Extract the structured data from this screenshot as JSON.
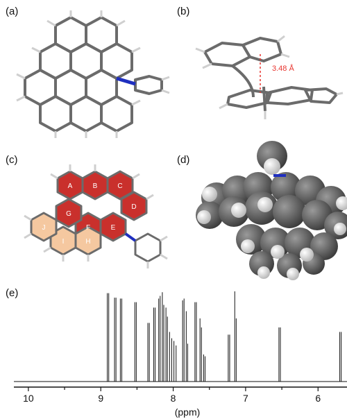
{
  "panels": {
    "a": {
      "label": "(a)"
    },
    "b": {
      "label": "(b)",
      "distance_label": "3.48 Å"
    },
    "c": {
      "label": "(c)",
      "rings": [
        "A",
        "B",
        "C",
        "D",
        "E",
        "F",
        "G",
        "H",
        "I",
        "J"
      ]
    },
    "d": {
      "label": "(d)"
    },
    "e": {
      "label": "(e)"
    }
  },
  "colors": {
    "bond_gray": "#6b6b6b",
    "hydrogen": "#d9d9d9",
    "nitrogen": "#1f2fbf",
    "ring_red": "#c9302c",
    "ring_peach": "#f5c8a0",
    "distance_red": "#e8342e"
  },
  "chart_data": {
    "type": "line",
    "title": "",
    "xlabel": "(ppm)",
    "ylabel": "",
    "xlim": [
      10.2,
      5.6
    ],
    "xticks": [
      "10",
      "9",
      "8",
      "7",
      "6"
    ],
    "grid": false,
    "peaks": [
      {
        "x": 8.91,
        "h": 0.98
      },
      {
        "x": 8.89,
        "h": 0.98
      },
      {
        "x": 8.81,
        "h": 0.93
      },
      {
        "x": 8.79,
        "h": 0.93
      },
      {
        "x": 8.73,
        "h": 0.92
      },
      {
        "x": 8.71,
        "h": 0.92
      },
      {
        "x": 8.53,
        "h": 0.88
      },
      {
        "x": 8.51,
        "h": 0.88
      },
      {
        "x": 8.35,
        "h": 0.65
      },
      {
        "x": 8.33,
        "h": 0.65
      },
      {
        "x": 8.27,
        "h": 0.82
      },
      {
        "x": 8.25,
        "h": 0.82
      },
      {
        "x": 8.2,
        "h": 0.92
      },
      {
        "x": 8.18,
        "h": 0.95
      },
      {
        "x": 8.15,
        "h": 0.99
      },
      {
        "x": 8.13,
        "h": 0.85
      },
      {
        "x": 8.1,
        "h": 0.82
      },
      {
        "x": 8.08,
        "h": 0.72
      },
      {
        "x": 8.05,
        "h": 0.55
      },
      {
        "x": 8.02,
        "h": 0.48
      },
      {
        "x": 7.99,
        "h": 0.45
      },
      {
        "x": 7.96,
        "h": 0.4
      },
      {
        "x": 7.87,
        "h": 0.9
      },
      {
        "x": 7.85,
        "h": 0.92
      },
      {
        "x": 7.82,
        "h": 0.78
      },
      {
        "x": 7.8,
        "h": 0.42
      },
      {
        "x": 7.7,
        "h": 0.88
      },
      {
        "x": 7.68,
        "h": 0.88
      },
      {
        "x": 7.63,
        "h": 0.7
      },
      {
        "x": 7.61,
        "h": 0.6
      },
      {
        "x": 7.58,
        "h": 0.3
      },
      {
        "x": 7.56,
        "h": 0.28
      },
      {
        "x": 7.24,
        "h": 0.52
      },
      {
        "x": 7.22,
        "h": 0.52
      },
      {
        "x": 7.15,
        "h": 1.0
      },
      {
        "x": 7.13,
        "h": 0.7
      },
      {
        "x": 6.54,
        "h": 0.6
      },
      {
        "x": 6.52,
        "h": 0.6
      },
      {
        "x": 5.7,
        "h": 0.55
      },
      {
        "x": 5.68,
        "h": 0.55
      }
    ]
  }
}
